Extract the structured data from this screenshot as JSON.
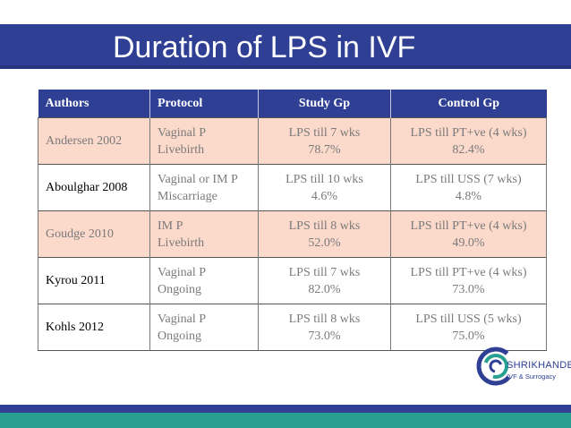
{
  "slide": {
    "title": "Duration of LPS in IVF"
  },
  "table": {
    "headers": [
      "Authors",
      "Protocol",
      "Study Gp",
      "Control  Gp"
    ],
    "rows": [
      {
        "author": "Andersen 2002",
        "protocol": [
          "Vaginal P",
          "Livebirth"
        ],
        "study": [
          "LPS till 7 wks",
          "78.7%"
        ],
        "control": [
          "LPS till PT+ve (4 wks)",
          "82.4%"
        ]
      },
      {
        "author": "Aboulghar 2008",
        "protocol": [
          "Vaginal or IM P",
          "Miscarriage"
        ],
        "study": [
          "LPS till 10 wks",
          "4.6%"
        ],
        "control": [
          "LPS till USS (7 wks)",
          "4.8%"
        ]
      },
      {
        "author": "Goudge 2010",
        "protocol": [
          "IM P",
          "Livebirth"
        ],
        "study": [
          "LPS till 8 wks",
          "52.0%"
        ],
        "control": [
          "LPS till PT+ve (4 wks)",
          "49.0%"
        ]
      },
      {
        "author": "Kyrou 2011",
        "protocol": [
          "Vaginal P",
          "Ongoing"
        ],
        "study": [
          "LPS till 7 wks",
          "82.0%"
        ],
        "control": [
          "LPS till PT+ve (4 wks)",
          "73.0%"
        ]
      },
      {
        "author": "Kohls 2012",
        "protocol": [
          "Vaginal P",
          "Ongoing"
        ],
        "study": [
          "LPS till 8 wks",
          "73.0%"
        ],
        "control": [
          "LPS till USS (5 wks)",
          "75.0%"
        ]
      }
    ]
  },
  "logo": {
    "name": "SHRIKHANDE",
    "tagline": "IVF & Surrogacy",
    "icon": "ring-logo-icon"
  },
  "colors": {
    "brand_blue": "#2e3f94",
    "row_pink": "#fbd9cb",
    "teal": "#27a091"
  }
}
